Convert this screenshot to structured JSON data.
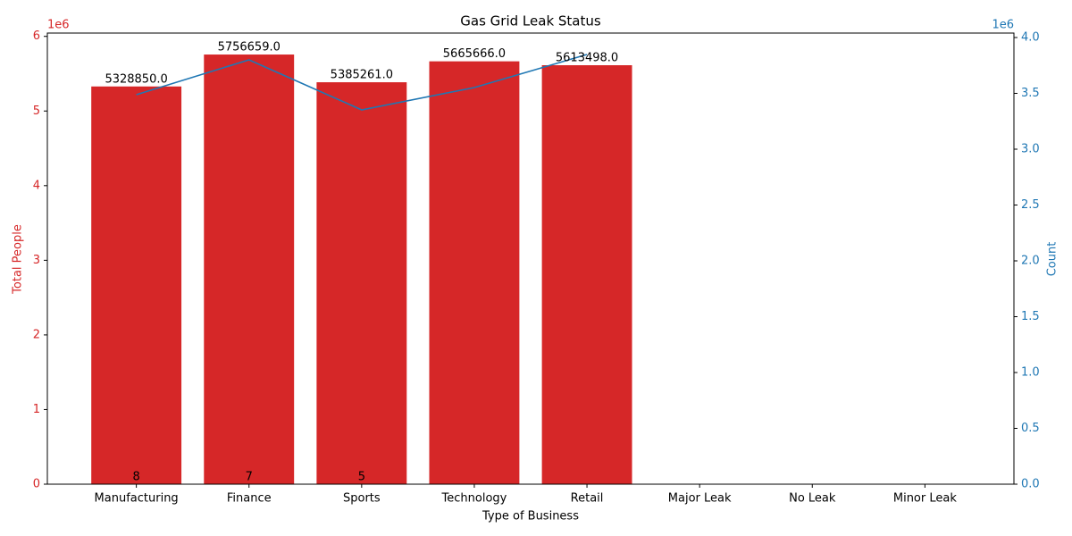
{
  "chart_data": {
    "type": "bar_line",
    "title": "Gas Grid Leak Status",
    "x_label": "Type of Business",
    "y_label": "Total People",
    "y2_label": "Count",
    "y_offset_label": "1e6",
    "y2_offset_label": "1e6",
    "categories": [
      "Manufacturing",
      "Finance",
      "Sports",
      "Technology",
      "Retail",
      "Major Leak",
      "No Leak",
      "Minor Leak"
    ],
    "series": [
      {
        "type": "bar",
        "color": "#d62728",
        "values": [
          5328850,
          5756659,
          5385261,
          5665666,
          5613498,
          null,
          null,
          null
        ],
        "value_labels": [
          "5328850.0",
          "5756659.0",
          "5385261.0",
          "5665666.0",
          "5613498.0",
          null,
          null,
          null
        ]
      },
      {
        "type": "bar",
        "color": "#d62728",
        "values": [
          8,
          7,
          5,
          null,
          null,
          null,
          null,
          null
        ]
      },
      {
        "type": "line",
        "axis": "y2",
        "color": "#1f77b4",
        "values": [
          3488000,
          3800000,
          3352000,
          3552000,
          3848000,
          null,
          null,
          null
        ]
      }
    ],
    "ylim": [
      0,
      6044492
    ],
    "yticks": [
      {
        "value": 0,
        "label": "0"
      },
      {
        "value": 1000000,
        "label": "1"
      },
      {
        "value": 2000000,
        "label": "2"
      },
      {
        "value": 3000000,
        "label": "3"
      },
      {
        "value": 4000000,
        "label": "4"
      },
      {
        "value": 5000000,
        "label": "5"
      },
      {
        "value": 6000000,
        "label": "6"
      }
    ],
    "y2lim": [
      0,
      4040000
    ],
    "y2ticks": [
      {
        "value": 0,
        "label": "0.0"
      },
      {
        "value": 500000,
        "label": "0.5"
      },
      {
        "value": 1000000,
        "label": "1.0"
      },
      {
        "value": 1500000,
        "label": "1.5"
      },
      {
        "value": 2000000,
        "label": "2.0"
      },
      {
        "value": 2500000,
        "label": "2.5"
      },
      {
        "value": 3000000,
        "label": "3.0"
      },
      {
        "value": 3500000,
        "label": "3.5"
      },
      {
        "value": 4000000,
        "label": "4.0"
      }
    ],
    "y_color": "#d62728",
    "y2_color": "#1f77b4"
  }
}
